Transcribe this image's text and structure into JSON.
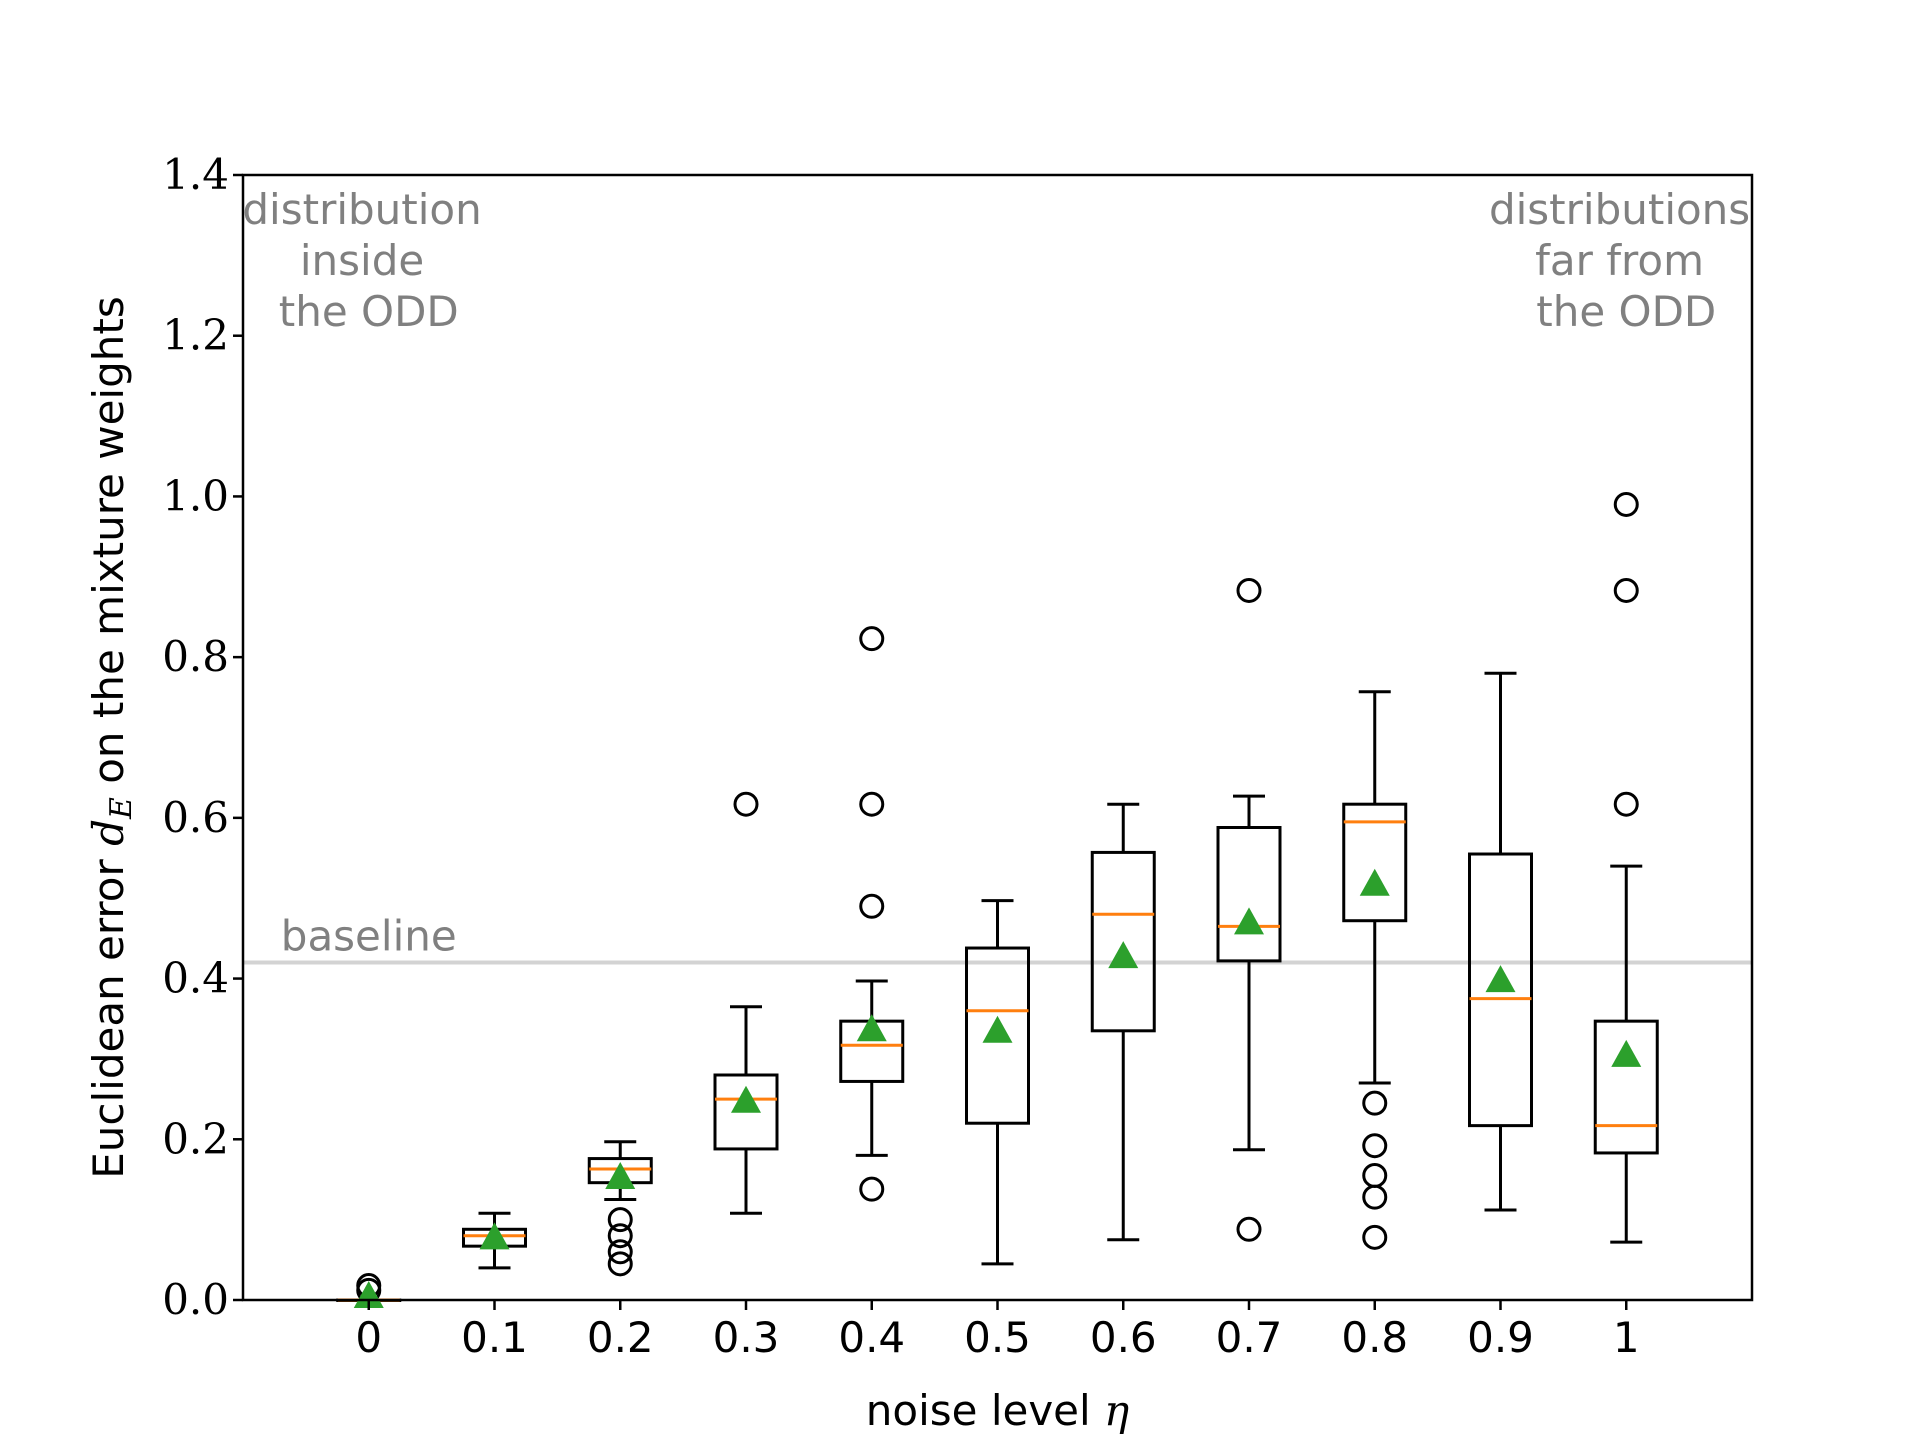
{
  "chart_data": {
    "type": "box",
    "xlabel": {
      "text": "noise level ",
      "symbol": "η"
    },
    "ylabel": {
      "text_before": "Euclidean error ",
      "symbol": "d",
      "subscript": "E",
      "text_after": " on the mixture weights"
    },
    "ylim": [
      0,
      1.4
    ],
    "yticks": [
      0.0,
      0.2,
      0.4,
      0.6,
      0.8,
      1.0,
      1.2,
      1.4
    ],
    "ytick_labels": [
      "0.0",
      "0.2",
      "0.4",
      "0.6",
      "0.8",
      "1.0",
      "1.2",
      "1.4"
    ],
    "categories": [
      "0",
      "0.1",
      "0.2",
      "0.3",
      "0.4",
      "0.5",
      "0.6",
      "0.7",
      "0.8",
      "0.9",
      "1"
    ],
    "baseline": {
      "value": 0.42,
      "label": "baseline"
    },
    "annotations": {
      "left": [
        "distribution",
        "inside",
        "the ODD"
      ],
      "right": [
        "distributions",
        "far from",
        "the ODD"
      ]
    },
    "boxes": [
      {
        "category": "0",
        "whisker_low": 0.0,
        "q1": 0.0,
        "median": 0.0,
        "q3": 0.0,
        "whisker_high": 0.0,
        "mean": 0.005,
        "outliers": [
          0.012,
          0.018
        ]
      },
      {
        "category": "0.1",
        "whisker_low": 0.04,
        "q1": 0.067,
        "median": 0.08,
        "q3": 0.088,
        "whisker_high": 0.108,
        "mean": 0.078,
        "outliers": []
      },
      {
        "category": "0.2",
        "whisker_low": 0.125,
        "q1": 0.146,
        "median": 0.163,
        "q3": 0.176,
        "whisker_high": 0.197,
        "mean": 0.153,
        "outliers": [
          0.045,
          0.06,
          0.08,
          0.1
        ]
      },
      {
        "category": "0.3",
        "whisker_low": 0.108,
        "q1": 0.188,
        "median": 0.25,
        "q3": 0.28,
        "whisker_high": 0.365,
        "mean": 0.248,
        "outliers": [
          0.617
        ]
      },
      {
        "category": "0.4",
        "whisker_low": 0.18,
        "q1": 0.272,
        "median": 0.317,
        "q3": 0.347,
        "whisker_high": 0.397,
        "mean": 0.337,
        "outliers": [
          0.138,
          0.49,
          0.617,
          0.823
        ]
      },
      {
        "category": "0.5",
        "whisker_low": 0.045,
        "q1": 0.22,
        "median": 0.36,
        "q3": 0.438,
        "whisker_high": 0.497,
        "mean": 0.335,
        "outliers": []
      },
      {
        "category": "0.6",
        "whisker_low": 0.075,
        "q1": 0.335,
        "median": 0.48,
        "q3": 0.557,
        "whisker_high": 0.617,
        "mean": 0.428,
        "outliers": []
      },
      {
        "category": "0.7",
        "whisker_low": 0.187,
        "q1": 0.422,
        "median": 0.465,
        "q3": 0.588,
        "whisker_high": 0.627,
        "mean": 0.47,
        "outliers": [
          0.088,
          0.883
        ]
      },
      {
        "category": "0.8",
        "whisker_low": 0.27,
        "q1": 0.472,
        "median": 0.595,
        "q3": 0.617,
        "whisker_high": 0.757,
        "mean": 0.518,
        "outliers": [
          0.078,
          0.128,
          0.155,
          0.192,
          0.245
        ]
      },
      {
        "category": "0.9",
        "whisker_low": 0.112,
        "q1": 0.217,
        "median": 0.375,
        "q3": 0.555,
        "whisker_high": 0.78,
        "mean": 0.398,
        "outliers": []
      },
      {
        "category": "1",
        "whisker_low": 0.072,
        "q1": 0.183,
        "median": 0.217,
        "q3": 0.347,
        "whisker_high": 0.54,
        "mean": 0.305,
        "outliers": [
          0.617,
          0.883,
          0.99
        ]
      }
    ],
    "colors": {
      "box": "#000000",
      "median": "#ff7f0e",
      "mean": "#2ca02c",
      "baseline": "#d3d3d3",
      "annotation": "#808080"
    }
  }
}
